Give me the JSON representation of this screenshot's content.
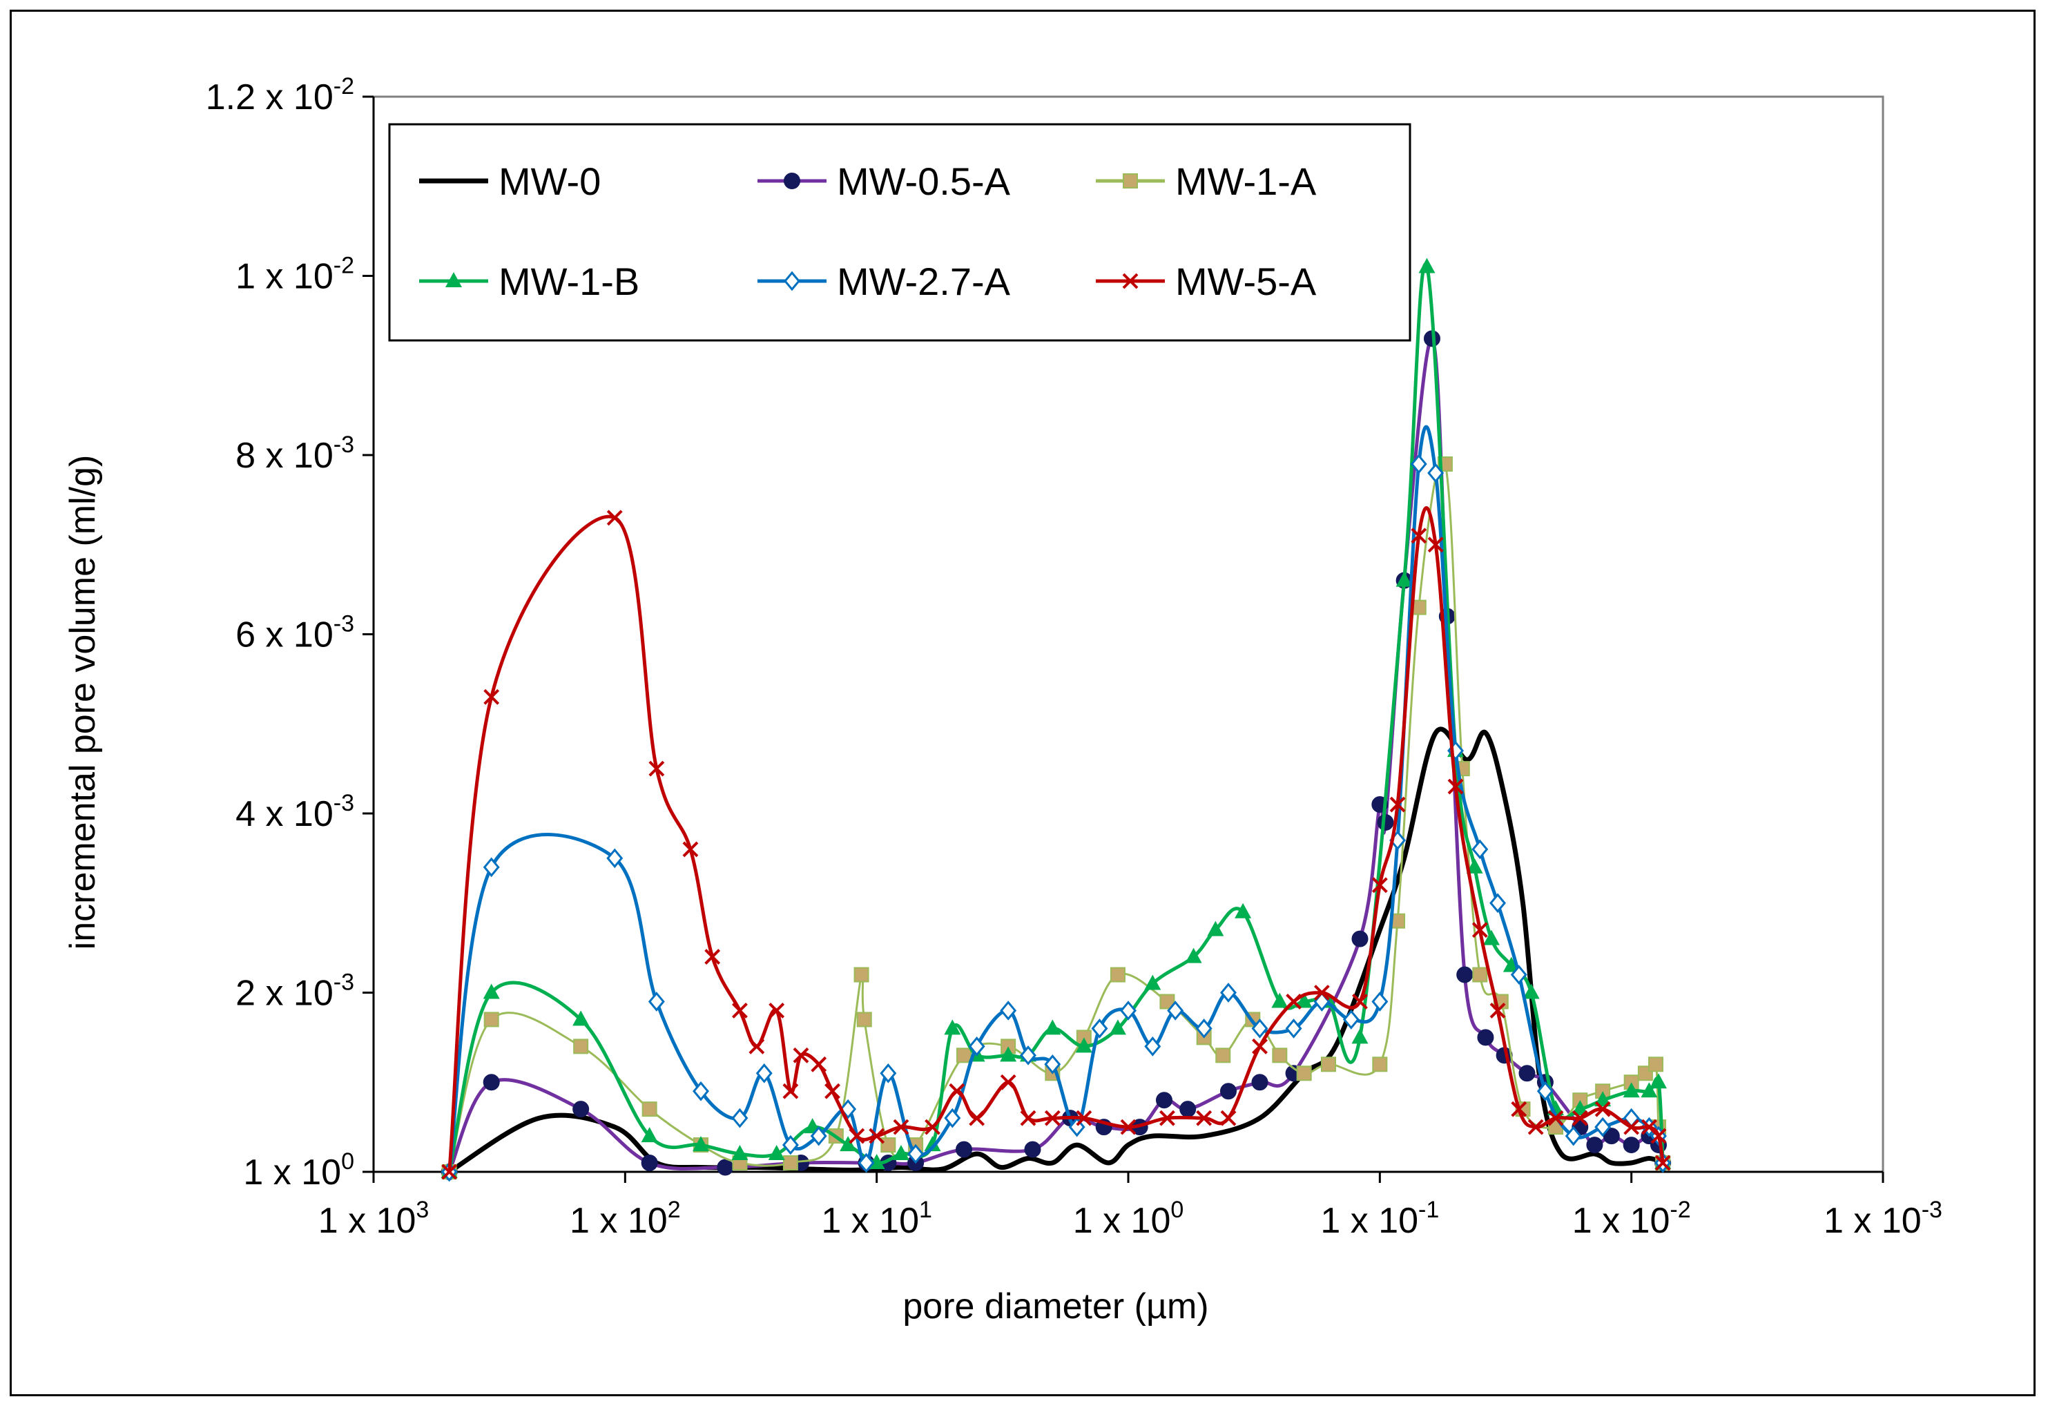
{
  "chart_data": {
    "type": "line",
    "xscale": "log",
    "x_reversed": true,
    "xlabel": "pore diameter (µm)",
    "ylabel": "incremental pore volume (ml/g)",
    "xlim": [
      1000,
      0.001
    ],
    "ylim": [
      0,
      0.012
    ],
    "x_ticks": [
      {
        "base": "1 x 10",
        "exp": "3"
      },
      {
        "base": "1 x 10",
        "exp": "2"
      },
      {
        "base": "1 x 10",
        "exp": "1"
      },
      {
        "base": "1 x 10",
        "exp": "0"
      },
      {
        "base": "1 x 10",
        "exp": "-1"
      },
      {
        "base": "1 x 10",
        "exp": "-2"
      },
      {
        "base": "1 x 10",
        "exp": "-3"
      }
    ],
    "y_ticks": [
      {
        "base": "1 x 10",
        "exp": "0"
      },
      {
        "base": "2 x 10",
        "exp": "-3"
      },
      {
        "base": "4 x 10",
        "exp": "-3"
      },
      {
        "base": "6 x 10",
        "exp": "-3"
      },
      {
        "base": "8 x 10",
        "exp": "-3"
      },
      {
        "base": "1 x 10",
        "exp": "-2"
      },
      {
        "base": "1.2 x 10",
        "exp": "-2"
      }
    ],
    "legend_position": "top-left",
    "series": [
      {
        "name": "MW-0",
        "color": "#000000",
        "marker": "none",
        "x": [
          500,
          220,
          110,
          75,
          50,
          30,
          18,
          12,
          8,
          5.5,
          4,
          3.2,
          2.5,
          2,
          1.6,
          1.2,
          1,
          0.8,
          0.5,
          0.3,
          0.2,
          0.15,
          0.1,
          0.08,
          0.06,
          0.045,
          0.038,
          0.032,
          0.027,
          0.023,
          0.019,
          0.014,
          0.012,
          0.01,
          0.0085,
          0.0075
        ],
        "y": [
          0,
          0.0006,
          0.0005,
          0.0001,
          5e-05,
          5e-05,
          3e-05,
          2e-05,
          5e-05,
          3e-05,
          0.0002,
          5e-05,
          0.00015,
          0.0001,
          0.0003,
          0.0001,
          0.0003,
          0.0004,
          0.0004,
          0.0006,
          0.0011,
          0.0014,
          0.0027,
          0.0035,
          0.0049,
          0.0046,
          0.0049,
          0.0042,
          0.003,
          0.001,
          0.0002,
          0.0002,
          0.0001,
          0.0001,
          0.00015,
          0.0001
        ]
      },
      {
        "name": "MW-0.5-A",
        "color": "#7030a0",
        "marker": "circle",
        "marker_color": "#14195c",
        "x": [
          500,
          340,
          150,
          80,
          40,
          20,
          11,
          9,
          7,
          4.5,
          2.4,
          1.7,
          1.25,
          0.9,
          0.72,
          0.58,
          0.4,
          0.3,
          0.22,
          0.12,
          0.1,
          0.095,
          0.08,
          0.062,
          0.054,
          0.046,
          0.038,
          0.032,
          0.026,
          0.022,
          0.016,
          0.014,
          0.012,
          0.01,
          0.0085,
          0.0078,
          0.0075
        ],
        "y": [
          0,
          0.001,
          0.0007,
          0.0001,
          5e-05,
          0.0001,
          0.0001,
          0.0001,
          0.0001,
          0.00025,
          0.00025,
          0.0006,
          0.0005,
          0.0005,
          0.0008,
          0.0007,
          0.0009,
          0.001,
          0.0011,
          0.0026,
          0.0041,
          0.0039,
          0.0066,
          0.0093,
          0.0062,
          0.0022,
          0.0015,
          0.0013,
          0.0011,
          0.001,
          0.0005,
          0.0003,
          0.0004,
          0.0003,
          0.0004,
          0.0003,
          0.0001
        ]
      },
      {
        "name": "MW-1-A",
        "color": "#9bbb59",
        "marker": "square",
        "marker_color": "#c4a96a",
        "x": [
          500,
          340,
          150,
          80,
          50,
          35,
          22,
          14.5,
          11.5,
          11.2,
          9,
          7,
          4.5,
          3,
          2,
          1.5,
          1.1,
          0.7,
          0.5,
          0.42,
          0.32,
          0.25,
          0.2,
          0.16,
          0.1,
          0.085,
          0.07,
          0.055,
          0.047,
          0.04,
          0.033,
          0.027,
          0.02,
          0.016,
          0.013,
          0.01,
          0.0088,
          0.008,
          0.0078,
          0.0075
        ],
        "y": [
          0,
          0.0017,
          0.0014,
          0.0007,
          0.0003,
          0.0001,
          0.0001,
          0.0004,
          0.0022,
          0.0017,
          0.0003,
          0.0003,
          0.0013,
          0.0014,
          0.0011,
          0.0015,
          0.0022,
          0.0019,
          0.0015,
          0.0013,
          0.0017,
          0.0013,
          0.0011,
          0.0012,
          0.0012,
          0.0028,
          0.0063,
          0.0079,
          0.0045,
          0.0022,
          0.0019,
          0.0007,
          0.0005,
          0.0008,
          0.0009,
          0.001,
          0.0011,
          0.0012,
          0.0005,
          0.0001
        ]
      },
      {
        "name": "MW-1-B",
        "color": "#00b050",
        "marker": "triangle",
        "marker_color": "#00b050",
        "x": [
          500,
          340,
          150,
          80,
          50,
          35,
          25,
          18,
          13,
          10,
          8,
          6,
          5,
          4,
          3,
          2.5,
          2,
          1.5,
          1.1,
          0.8,
          0.55,
          0.45,
          0.35,
          0.25,
          0.2,
          0.16,
          0.12,
          0.08,
          0.065,
          0.05,
          0.042,
          0.036,
          0.03,
          0.025,
          0.02,
          0.016,
          0.013,
          0.01,
          0.0085,
          0.0078,
          0.0075
        ],
        "y": [
          0,
          0.002,
          0.0017,
          0.0004,
          0.0003,
          0.0002,
          0.0002,
          0.0005,
          0.0003,
          0.0001,
          0.0002,
          0.0003,
          0.0016,
          0.0013,
          0.0013,
          0.0013,
          0.0016,
          0.0014,
          0.0016,
          0.0021,
          0.0024,
          0.0027,
          0.0029,
          0.0019,
          0.0019,
          0.0019,
          0.0015,
          0.0066,
          0.0101,
          0.0047,
          0.0034,
          0.0026,
          0.0023,
          0.002,
          0.0007,
          0.0007,
          0.0008,
          0.0009,
          0.0009,
          0.001,
          0.0001
        ]
      },
      {
        "name": "MW-2.7-A",
        "color": "#0070c0",
        "marker": "diamond",
        "marker_color": "#0070c0",
        "x": [
          500,
          340,
          110,
          75,
          50,
          35,
          28,
          22,
          17,
          13,
          11,
          9,
          7,
          5,
          4,
          3,
          2.5,
          2,
          1.6,
          1.3,
          1,
          0.8,
          0.65,
          0.5,
          0.4,
          0.3,
          0.22,
          0.17,
          0.13,
          0.1,
          0.085,
          0.07,
          0.06,
          0.05,
          0.04,
          0.034,
          0.028,
          0.022,
          0.017,
          0.013,
          0.01,
          0.0085,
          0.0078,
          0.0075
        ],
        "y": [
          0,
          0.0034,
          0.0035,
          0.0019,
          0.0009,
          0.0006,
          0.0011,
          0.0003,
          0.0004,
          0.0007,
          0.0001,
          0.0011,
          0.0002,
          0.0006,
          0.0014,
          0.0018,
          0.0013,
          0.0012,
          0.0005,
          0.0016,
          0.0018,
          0.0014,
          0.0018,
          0.0016,
          0.002,
          0.0016,
          0.0016,
          0.0019,
          0.0017,
          0.0019,
          0.0037,
          0.0079,
          0.0078,
          0.0047,
          0.0036,
          0.003,
          0.0022,
          0.0009,
          0.0004,
          0.0005,
          0.0006,
          0.0005,
          0.0004,
          0.0001
        ]
      },
      {
        "name": "MW-5-A",
        "color": "#c00000",
        "marker": "x",
        "marker_color": "#c00000",
        "x": [
          500,
          340,
          110,
          75,
          55,
          45,
          35,
          30,
          25,
          22,
          20,
          17,
          15,
          12,
          10,
          8,
          6,
          4.8,
          4,
          3,
          2.5,
          2,
          1.5,
          1,
          0.7,
          0.5,
          0.4,
          0.3,
          0.22,
          0.17,
          0.12,
          0.1,
          0.085,
          0.07,
          0.06,
          0.05,
          0.04,
          0.034,
          0.028,
          0.024,
          0.02,
          0.016,
          0.013,
          0.01,
          0.0085,
          0.0078,
          0.0075
        ],
        "y": [
          0,
          0.0053,
          0.0073,
          0.0045,
          0.0036,
          0.0024,
          0.0018,
          0.0014,
          0.0018,
          0.0009,
          0.0013,
          0.0012,
          0.0009,
          0.0004,
          0.0004,
          0.0005,
          0.0005,
          0.0009,
          0.0006,
          0.001,
          0.0006,
          0.0006,
          0.0006,
          0.0005,
          0.0006,
          0.0006,
          0.0006,
          0.0014,
          0.0019,
          0.002,
          0.0019,
          0.0032,
          0.0041,
          0.0071,
          0.007,
          0.0043,
          0.0027,
          0.0018,
          0.0007,
          0.0005,
          0.0006,
          0.0006,
          0.0007,
          0.0005,
          0.0005,
          0.0004,
          0.0001
        ]
      }
    ]
  }
}
